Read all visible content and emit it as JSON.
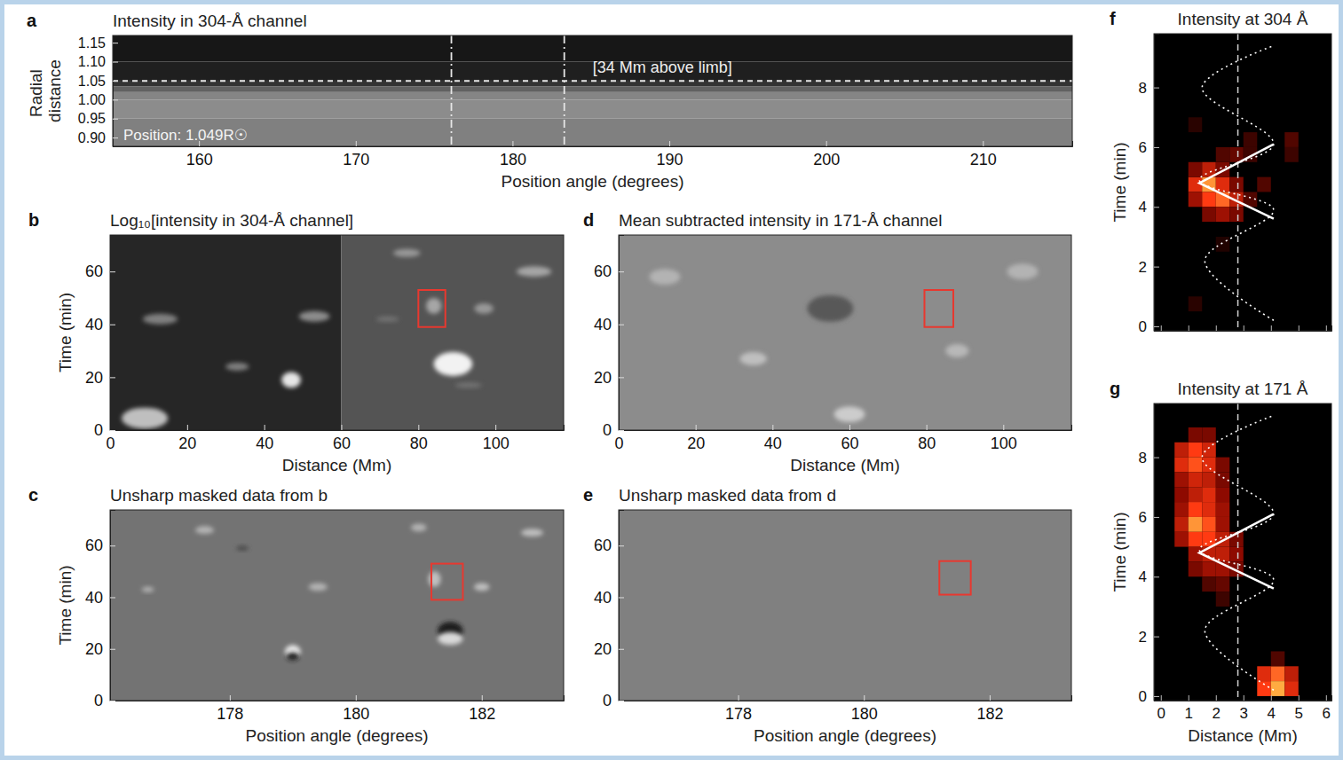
{
  "chart_data": [
    {
      "panel": "a",
      "type": "image",
      "title": "Intensity in 304-Å channel",
      "x_label": "Position angle (degrees)",
      "y_label": "Radial distance",
      "xlim": [
        154.5,
        215.7
      ],
      "xticks": [
        160,
        170,
        180,
        190,
        200,
        210
      ],
      "ylim": [
        0.877,
        1.169
      ],
      "yticks": [
        {
          "value": 0.9,
          "label": "0.90"
        },
        {
          "value": 0.95,
          "label": "0.95"
        },
        {
          "value": 1.0,
          "label": "1.00"
        },
        {
          "value": 1.05,
          "label": "1.05"
        },
        {
          "value": 1.1,
          "label": "1.10"
        },
        {
          "value": 1.15,
          "label": "1.15"
        }
      ],
      "r_edges": [
        0.877,
        0.95,
        1.0,
        1.02,
        1.035,
        1.05,
        1.1,
        1.169
      ],
      "intensity": [
        0.5,
        0.55,
        0.52,
        0.38,
        0.2,
        0.12,
        0.09
      ],
      "hline": 1.049,
      "vlines": [
        176.1,
        183.3
      ],
      "annotations": [
        "[34 Mm above limb]",
        "Position: 1.049R☉"
      ]
    },
    {
      "panel": "b",
      "type": "image",
      "title": "Log₁₀[intensity in 304-Å channel]",
      "x_label": "Distance (Mm)",
      "y_label": "Time (min)",
      "xlim": [
        0,
        117.7
      ],
      "xticks": [
        0,
        20,
        40,
        60,
        80,
        100
      ],
      "ylim": [
        0,
        73.8
      ],
      "yticks": [
        0,
        20,
        40,
        60
      ],
      "background": {
        "x_edges": [
          0,
          60,
          117.7
        ],
        "intensity": [
          0.15,
          0.33
        ]
      },
      "features": [
        {
          "x": 9,
          "t": 4.5,
          "w": 12,
          "h": 8,
          "intensity": 0.75
        },
        {
          "x": 13,
          "t": 42,
          "w": 9,
          "h": 4,
          "intensity": 0.5
        },
        {
          "x": 33,
          "t": 24,
          "w": 6,
          "h": 3,
          "intensity": 0.5
        },
        {
          "x": 47,
          "t": 19,
          "w": 5,
          "h": 6,
          "intensity": 0.9
        },
        {
          "x": 53,
          "t": 43,
          "w": 8,
          "h": 4,
          "intensity": 0.55
        },
        {
          "x": 77,
          "t": 67,
          "w": 7,
          "h": 3,
          "intensity": 0.6
        },
        {
          "x": 84,
          "t": 47,
          "w": 4,
          "h": 6,
          "intensity": 0.65
        },
        {
          "x": 97,
          "t": 46,
          "w": 5,
          "h": 4,
          "intensity": 0.6
        },
        {
          "x": 89,
          "t": 25,
          "w": 10,
          "h": 9,
          "intensity": 0.95
        },
        {
          "x": 110,
          "t": 60,
          "w": 9,
          "h": 4,
          "intensity": 0.65
        },
        {
          "x": 72,
          "t": 42,
          "w": 6,
          "h": 2,
          "intensity": 0.45
        },
        {
          "x": 93,
          "t": 17,
          "w": 7,
          "h": 2,
          "intensity": 0.45
        }
      ],
      "box": {
        "x": [
          80,
          87
        ],
        "t": [
          39,
          53
        ]
      }
    },
    {
      "panel": "c",
      "type": "image",
      "title": "Unsharp masked data from b",
      "x_label": "Position angle (degrees)",
      "y_label": "Time (min)",
      "xlim": [
        176.1,
        183.3
      ],
      "xticks": [
        178,
        180,
        182
      ],
      "ylim": [
        0,
        73.8
      ],
      "yticks": [
        0,
        20,
        40,
        60
      ],
      "background": {
        "x_edges": [
          176.1,
          183.3
        ],
        "intensity": [
          0.45
        ]
      },
      "features": [
        {
          "x": 179.0,
          "t": 19,
          "w": 0.25,
          "h": 5,
          "intensity": 0.9
        },
        {
          "x": 179.0,
          "t": 17,
          "w": 0.2,
          "h": 3,
          "intensity": 0.1
        },
        {
          "x": 181.5,
          "t": 27,
          "w": 0.4,
          "h": 7,
          "intensity": 0.1
        },
        {
          "x": 181.5,
          "t": 24,
          "w": 0.4,
          "h": 5,
          "intensity": 0.85
        },
        {
          "x": 181.25,
          "t": 47,
          "w": 0.2,
          "h": 6,
          "intensity": 0.75
        },
        {
          "x": 182.0,
          "t": 44,
          "w": 0.25,
          "h": 3,
          "intensity": 0.75
        },
        {
          "x": 177.6,
          "t": 66,
          "w": 0.3,
          "h": 3,
          "intensity": 0.7
        },
        {
          "x": 179.4,
          "t": 44,
          "w": 0.3,
          "h": 3,
          "intensity": 0.7
        },
        {
          "x": 181.0,
          "t": 67,
          "w": 0.25,
          "h": 3,
          "intensity": 0.7
        },
        {
          "x": 182.8,
          "t": 65,
          "w": 0.35,
          "h": 3,
          "intensity": 0.75
        },
        {
          "x": 176.7,
          "t": 43,
          "w": 0.2,
          "h": 2,
          "intensity": 0.7
        },
        {
          "x": 178.2,
          "t": 59,
          "w": 0.2,
          "h": 2,
          "intensity": 0.3
        }
      ],
      "box": {
        "x": [
          181.2,
          181.7
        ],
        "t": [
          39,
          53
        ]
      }
    },
    {
      "panel": "d",
      "type": "image",
      "title": "Mean subtracted intensity in 171-Å channel",
      "x_label": "Distance (Mm)",
      "xlim": [
        0,
        117.7
      ],
      "xticks": [
        0,
        20,
        40,
        60,
        80,
        100
      ],
      "ylim": [
        0,
        73.8
      ],
      "yticks": [
        0,
        20,
        40,
        60
      ],
      "background": {
        "x_edges": [
          0,
          117.7
        ],
        "intensity": [
          0.55
        ]
      },
      "features": [
        {
          "x": 60,
          "t": 6,
          "w": 8,
          "h": 6,
          "intensity": 0.8
        },
        {
          "x": 35,
          "t": 27,
          "w": 7,
          "h": 5,
          "intensity": 0.75
        },
        {
          "x": 12,
          "t": 58,
          "w": 8,
          "h": 6,
          "intensity": 0.7
        },
        {
          "x": 55,
          "t": 46,
          "w": 12,
          "h": 10,
          "intensity": 0.35
        },
        {
          "x": 88,
          "t": 30,
          "w": 6,
          "h": 5,
          "intensity": 0.72
        },
        {
          "x": 105,
          "t": 60,
          "w": 8,
          "h": 6,
          "intensity": 0.7
        }
      ],
      "box": {
        "x": [
          79.5,
          87
        ],
        "t": [
          39,
          53
        ]
      }
    },
    {
      "panel": "e",
      "type": "image",
      "title": "Unsharp masked data from d",
      "x_label": "Position angle (degrees)",
      "xlim": [
        176.1,
        183.3
      ],
      "xticks": [
        178,
        180,
        182
      ],
      "ylim": [
        0,
        73.8
      ],
      "yticks": [
        0,
        20,
        40,
        60
      ],
      "background": {
        "x_edges": [
          176.1,
          183.3
        ],
        "intensity": [
          0.5
        ]
      },
      "box": {
        "x": [
          181.2,
          181.7
        ],
        "t": [
          41,
          54
        ]
      }
    },
    {
      "panel": "f",
      "type": "heatmap",
      "title": "Intensity at 304 Å",
      "y_label": "Time (min)",
      "xlim": [
        -0.25,
        6.2
      ],
      "xticks": [
        0,
        1,
        2,
        3,
        4,
        5,
        6
      ],
      "tick_labels": "y",
      "ylim": [
        -0.15,
        9.8
      ],
      "yticks": [
        0,
        2,
        4,
        6,
        8
      ],
      "clim": [
        0,
        1
      ],
      "cell_width": 0.5,
      "cell_height": 0.5,
      "cells": [
        {
          "x": 1.0,
          "t": 4.5,
          "value": 0.6
        },
        {
          "x": 1.5,
          "t": 4.5,
          "value": 0.9
        },
        {
          "x": 2.0,
          "t": 4.5,
          "value": 0.6
        },
        {
          "x": 2.5,
          "t": 4.5,
          "value": 0.3
        },
        {
          "x": 1.0,
          "t": 4.0,
          "value": 0.4
        },
        {
          "x": 1.5,
          "t": 4.0,
          "value": 0.7
        },
        {
          "x": 2.0,
          "t": 4.0,
          "value": 0.8
        },
        {
          "x": 2.5,
          "t": 4.0,
          "value": 0.5
        },
        {
          "x": 3.0,
          "t": 4.0,
          "value": 0.2
        },
        {
          "x": 1.5,
          "t": 3.5,
          "value": 0.3
        },
        {
          "x": 2.0,
          "t": 3.5,
          "value": 0.4
        },
        {
          "x": 2.5,
          "t": 3.5,
          "value": 0.3
        },
        {
          "x": 1.0,
          "t": 5.0,
          "value": 0.3
        },
        {
          "x": 1.5,
          "t": 5.0,
          "value": 0.5
        },
        {
          "x": 2.0,
          "t": 5.0,
          "value": 0.3
        },
        {
          "x": 2.0,
          "t": 5.5,
          "value": 0.2
        },
        {
          "x": 2.5,
          "t": 5.5,
          "value": 0.25
        },
        {
          "x": 3.0,
          "t": 5.5,
          "value": 0.15
        },
        {
          "x": 3.0,
          "t": 6.0,
          "value": 0.15
        },
        {
          "x": 4.5,
          "t": 6.0,
          "value": 0.2
        },
        {
          "x": 4.5,
          "t": 5.5,
          "value": 0.15
        },
        {
          "x": 3.5,
          "t": 4.5,
          "value": 0.2
        },
        {
          "x": 1.0,
          "t": 6.5,
          "value": 0.1
        },
        {
          "x": 1.0,
          "t": 0.5,
          "value": 0.1
        },
        {
          "x": 2.0,
          "t": 2.5,
          "value": 0.08
        }
      ],
      "dashed_x": 2.8,
      "oscillation": {
        "x": [
          4.1,
          1.6,
          4.1,
          1.4,
          4.1,
          1.5,
          4.1
        ],
        "t": [
          0.2,
          2.2,
          3.9,
          4.9,
          6.1,
          8.0,
          9.4
        ]
      },
      "fit": {
        "x": [
          4.1,
          1.4,
          4.1
        ],
        "t": [
          6.1,
          4.8,
          3.6
        ]
      }
    },
    {
      "panel": "g",
      "type": "heatmap",
      "title": "Intensity at 171 Å",
      "x_label": "Distance (Mm)",
      "y_label": "Time (min)",
      "xlim": [
        -0.25,
        6.2
      ],
      "xticks": [
        0,
        1,
        2,
        3,
        4,
        5,
        6
      ],
      "ylim": [
        -0.15,
        9.8
      ],
      "yticks": [
        0,
        2,
        4,
        6,
        8
      ],
      "clim": [
        0,
        1
      ],
      "cell_width": 0.5,
      "cell_height": 0.5,
      "cells": [
        {
          "x": 0.5,
          "t": 8.0,
          "value": 0.5
        },
        {
          "x": 1.0,
          "t": 8.0,
          "value": 0.7
        },
        {
          "x": 1.5,
          "t": 8.0,
          "value": 0.55
        },
        {
          "x": 0.5,
          "t": 7.5,
          "value": 0.6
        },
        {
          "x": 1.0,
          "t": 7.5,
          "value": 0.75
        },
        {
          "x": 1.5,
          "t": 7.5,
          "value": 0.6
        },
        {
          "x": 2.0,
          "t": 7.5,
          "value": 0.3
        },
        {
          "x": 0.5,
          "t": 7.0,
          "value": 0.4
        },
        {
          "x": 1.0,
          "t": 7.0,
          "value": 0.55
        },
        {
          "x": 1.5,
          "t": 7.0,
          "value": 0.5
        },
        {
          "x": 2.0,
          "t": 7.0,
          "value": 0.3
        },
        {
          "x": 0.5,
          "t": 6.5,
          "value": 0.35
        },
        {
          "x": 1.0,
          "t": 6.5,
          "value": 0.5
        },
        {
          "x": 1.5,
          "t": 6.5,
          "value": 0.6
        },
        {
          "x": 2.0,
          "t": 6.5,
          "value": 0.35
        },
        {
          "x": 0.5,
          "t": 6.0,
          "value": 0.4
        },
        {
          "x": 1.0,
          "t": 6.0,
          "value": 0.7
        },
        {
          "x": 1.5,
          "t": 6.0,
          "value": 0.6
        },
        {
          "x": 2.0,
          "t": 6.0,
          "value": 0.4
        },
        {
          "x": 0.5,
          "t": 5.5,
          "value": 0.5
        },
        {
          "x": 1.0,
          "t": 5.5,
          "value": 0.9
        },
        {
          "x": 1.5,
          "t": 5.5,
          "value": 0.75
        },
        {
          "x": 2.0,
          "t": 5.5,
          "value": 0.4
        },
        {
          "x": 0.5,
          "t": 5.0,
          "value": 0.4
        },
        {
          "x": 1.0,
          "t": 5.0,
          "value": 0.7
        },
        {
          "x": 1.5,
          "t": 5.0,
          "value": 0.7
        },
        {
          "x": 2.0,
          "t": 5.0,
          "value": 0.5
        },
        {
          "x": 2.5,
          "t": 5.0,
          "value": 0.3
        },
        {
          "x": 1.0,
          "t": 4.5,
          "value": 0.4
        },
        {
          "x": 1.5,
          "t": 4.5,
          "value": 0.5
        },
        {
          "x": 2.0,
          "t": 4.5,
          "value": 0.5
        },
        {
          "x": 2.5,
          "t": 4.5,
          "value": 0.35
        },
        {
          "x": 1.0,
          "t": 4.0,
          "value": 0.3
        },
        {
          "x": 1.5,
          "t": 4.0,
          "value": 0.4
        },
        {
          "x": 2.0,
          "t": 4.0,
          "value": 0.4
        },
        {
          "x": 2.5,
          "t": 4.0,
          "value": 0.3
        },
        {
          "x": 1.5,
          "t": 3.5,
          "value": 0.2
        },
        {
          "x": 2.0,
          "t": 3.5,
          "value": 0.25
        },
        {
          "x": 2.0,
          "t": 3.0,
          "value": 0.15
        },
        {
          "x": 1.0,
          "t": 8.5,
          "value": 0.3
        },
        {
          "x": 1.5,
          "t": 8.5,
          "value": 0.3
        },
        {
          "x": 3.5,
          "t": 0.5,
          "value": 0.6
        },
        {
          "x": 4.0,
          "t": 0.5,
          "value": 0.8
        },
        {
          "x": 4.5,
          "t": 0.5,
          "value": 0.5
        },
        {
          "x": 3.5,
          "t": 0.0,
          "value": 0.7
        },
        {
          "x": 4.0,
          "t": 0.0,
          "value": 0.95
        },
        {
          "x": 4.5,
          "t": 0.0,
          "value": 0.6
        },
        {
          "x": 4.0,
          "t": 1.0,
          "value": 0.2
        }
      ],
      "dashed_x": 2.8,
      "oscillation": {
        "x": [
          4.1,
          1.6,
          4.1,
          1.4,
          4.1,
          1.5,
          4.1
        ],
        "t": [
          0.2,
          2.2,
          3.9,
          4.9,
          6.1,
          8.0,
          9.4
        ]
      },
      "fit": {
        "x": [
          4.1,
          1.4,
          4.1
        ],
        "t": [
          6.1,
          4.8,
          3.6
        ]
      }
    }
  ]
}
